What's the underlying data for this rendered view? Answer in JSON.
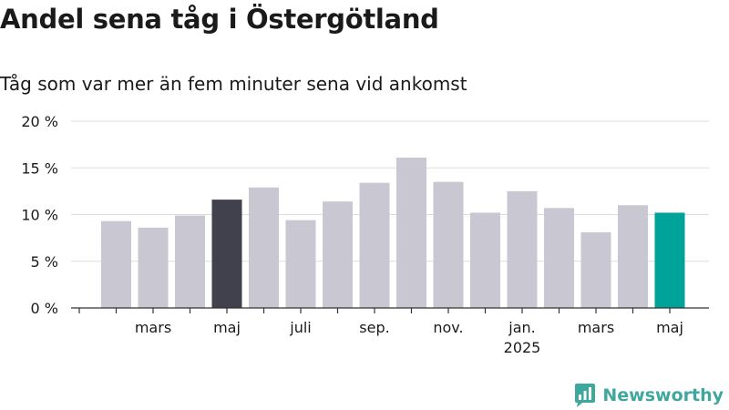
{
  "chart_data": {
    "type": "bar",
    "title": "Andel sena tåg i Östergötland",
    "subtitle": "Tåg som var mer än fem minuter sena vid ankomst",
    "xlabel": "",
    "ylabel": "",
    "categories": [
      "2024-02",
      "2024-03",
      "2024-04",
      "2024-05",
      "2024-06",
      "2024-07",
      "2024-08",
      "2024-09",
      "2024-10",
      "2024-11",
      "2024-12",
      "2025-01",
      "2025-02",
      "2025-03",
      "2025-04",
      "2025-05"
    ],
    "values": [
      9.3,
      8.6,
      9.9,
      11.6,
      12.9,
      9.4,
      11.4,
      13.4,
      16.1,
      13.5,
      10.2,
      12.5,
      10.7,
      8.1,
      11.0,
      10.2
    ],
    "ylim": [
      0,
      20
    ],
    "yticks": [
      0,
      5,
      10,
      15,
      20
    ],
    "ytick_labels": [
      "0 %",
      "5 %",
      "10 %",
      "15 %",
      "20 %"
    ],
    "xtick_labels": [
      {
        "month": "2024-03",
        "label": "mars",
        "sublabel": ""
      },
      {
        "month": "2024-05",
        "label": "maj",
        "sublabel": ""
      },
      {
        "month": "2024-07",
        "label": "juli",
        "sublabel": ""
      },
      {
        "month": "2024-09",
        "label": "sep.",
        "sublabel": ""
      },
      {
        "month": "2024-11",
        "label": "nov.",
        "sublabel": ""
      },
      {
        "month": "2025-01",
        "label": "jan.",
        "sublabel": "2025"
      },
      {
        "month": "2025-03",
        "label": "mars",
        "sublabel": ""
      },
      {
        "month": "2025-05",
        "label": "maj",
        "sublabel": ""
      }
    ],
    "grid": true,
    "colors": {
      "default": "#c8c7d2",
      "highlight_previous_year": "#41404d",
      "highlight_latest": "#00a39a",
      "grid": "#dddddd"
    },
    "highlight": {
      "2024-05": "highlight_previous_year",
      "2025-05": "highlight_latest"
    }
  },
  "brand": {
    "name": "Newsworthy",
    "icon": "newsworthy-logo-icon",
    "color": "#3ea89e"
  }
}
